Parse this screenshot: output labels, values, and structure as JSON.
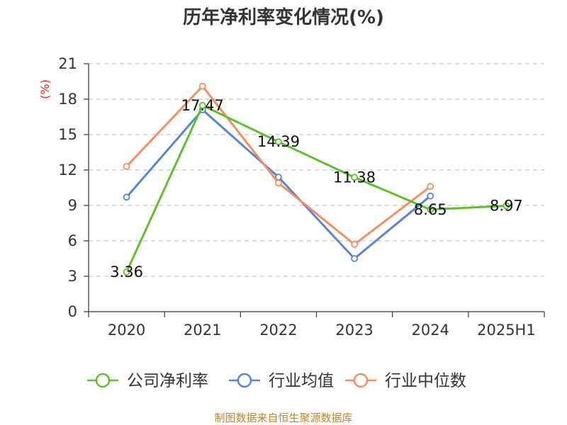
{
  "chart_data": {
    "type": "line",
    "title": "历年净利率变化情况(%)",
    "unit": "(%)",
    "categories": [
      "2020",
      "2021",
      "2022",
      "2023",
      "2024",
      "2025H1"
    ],
    "ylim": [
      0,
      21
    ],
    "yticks": [
      0,
      3,
      6,
      9,
      12,
      15,
      18,
      21
    ],
    "grid": true,
    "legend_position": "bottom",
    "series": [
      {
        "name": "公司净利率",
        "color": "#5cc12b",
        "values": [
          3.36,
          17.47,
          14.39,
          11.38,
          8.65,
          8.97
        ],
        "labels": [
          "3.36",
          "17.47",
          "14.39",
          "11.38",
          "8.65",
          "8.97"
        ]
      },
      {
        "name": "行业均值",
        "color": "#5585d8",
        "values": [
          9.7,
          17.1,
          11.4,
          4.5,
          9.8,
          null
        ]
      },
      {
        "name": "行业中位数",
        "color": "#f58e5e",
        "values": [
          12.3,
          19.1,
          10.9,
          5.7,
          10.6,
          null
        ]
      }
    ]
  },
  "source": "制图数据来自恒生聚源数据库"
}
